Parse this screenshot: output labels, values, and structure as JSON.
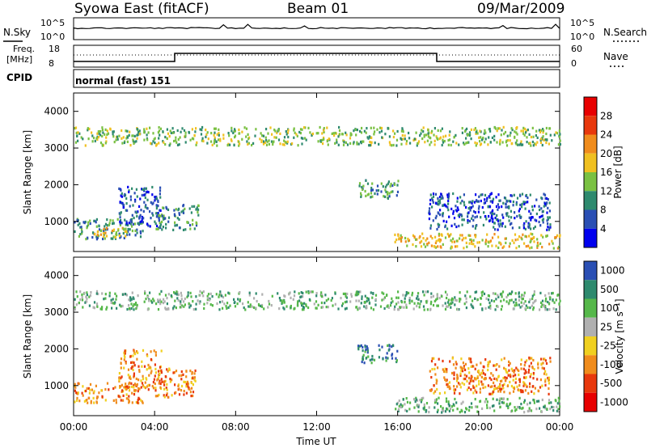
{
  "header": {
    "station": "Syowa East (fitACF)",
    "beam": "Beam 01",
    "date": "09/Mar/2009"
  },
  "strip_panels": {
    "nsky_label": "N.Sky",
    "nsearch_label": "N.Search",
    "noise_ticks": [
      "10^5",
      "10^0"
    ],
    "freq_label_line1": "Freq.",
    "freq_label_line2": "[MHz]",
    "freq_ticks": [
      "18",
      "8"
    ],
    "nave_label": "Nave",
    "nave_ticks": [
      "60",
      "0"
    ],
    "cpid_label": "CPID",
    "cpid_value": "normal (fast) 151"
  },
  "chart_data": [
    {
      "type": "heatmap",
      "title": "",
      "xlabel": "Time UT",
      "ylabel": "Slant Range [km]",
      "x_ticks": [
        "00:00",
        "04:00",
        "08:00",
        "12:00",
        "16:00",
        "20:00",
        "00:00"
      ],
      "xlim_hours": [
        0,
        24
      ],
      "y_ticks": [
        "1000",
        "2000",
        "3000",
        "4000"
      ],
      "ylim": [
        180,
        4500
      ],
      "colorbar_label": "Power [dB]",
      "colorbar_ticks": [
        "4",
        "8",
        "12",
        "16",
        "20",
        "24",
        "28"
      ],
      "colors": [
        "#0000ee",
        "#2a4fb4",
        "#2e8a6e",
        "#7ac142",
        "#f0c020",
        "#f08c1c",
        "#e8380c",
        "#e80000"
      ],
      "scatter_regions": [
        {
          "t_start": 0.0,
          "t_end": 3.4,
          "r_start": 550,
          "r_end": 1100,
          "level": 2
        },
        {
          "t_start": 0.6,
          "t_end": 2.6,
          "r_start": 600,
          "r_end": 850,
          "level": 4
        },
        {
          "t_start": 2.2,
          "t_end": 4.3,
          "r_start": 900,
          "r_end": 2000,
          "level": 1
        },
        {
          "t_start": 4.0,
          "t_end": 6.2,
          "r_start": 800,
          "r_end": 1500,
          "level": 2
        },
        {
          "t_start": 14.0,
          "t_end": 16.0,
          "r_start": 1650,
          "r_end": 2150,
          "level": 2
        },
        {
          "t_start": 15.8,
          "t_end": 24.0,
          "r_start": 300,
          "r_end": 700,
          "level": 4
        },
        {
          "t_start": 17.5,
          "t_end": 23.5,
          "r_start": 800,
          "r_end": 1800,
          "level": 1
        },
        {
          "t_start": 0.0,
          "t_end": 24.0,
          "r_start": 3100,
          "r_end": 3600,
          "level": 3
        }
      ]
    },
    {
      "type": "heatmap",
      "title": "",
      "xlabel": "Time UT",
      "ylabel": "Slant Range [km]",
      "x_ticks": [
        "00:00",
        "04:00",
        "08:00",
        "12:00",
        "16:00",
        "20:00",
        "00:00"
      ],
      "xlim_hours": [
        0,
        24
      ],
      "y_ticks": [
        "1000",
        "2000",
        "3000",
        "4000"
      ],
      "ylim": [
        180,
        4500
      ],
      "colorbar_label": "Velocity [m s⁻¹]",
      "colorbar_ticks": [
        "1000",
        "500",
        "100",
        "25",
        "-25",
        "-100",
        "-500",
        "-1000"
      ],
      "colors": [
        "#2a4fb4",
        "#2e8a6e",
        "#56b84a",
        "#b0b0b0",
        "#f0d020",
        "#f08c1c",
        "#e8380c",
        "#e80000"
      ],
      "scatter_regions": [
        {
          "t_start": 0.0,
          "t_end": 3.4,
          "r_start": 550,
          "r_end": 1100,
          "level": 5
        },
        {
          "t_start": 2.2,
          "t_end": 4.3,
          "r_start": 900,
          "r_end": 2000,
          "level": 5
        },
        {
          "t_start": 4.0,
          "t_end": 6.0,
          "r_start": 700,
          "r_end": 1500,
          "level": 5
        },
        {
          "t_start": 14.0,
          "t_end": 16.0,
          "r_start": 1650,
          "r_end": 2150,
          "level": 1
        },
        {
          "t_start": 15.8,
          "t_end": 24.0,
          "r_start": 300,
          "r_end": 700,
          "level": 2
        },
        {
          "t_start": 17.5,
          "t_end": 23.5,
          "r_start": 800,
          "r_end": 1800,
          "level": 5
        },
        {
          "t_start": 0.0,
          "t_end": 24.0,
          "r_start": 3100,
          "r_end": 3600,
          "level": 2
        }
      ]
    }
  ]
}
